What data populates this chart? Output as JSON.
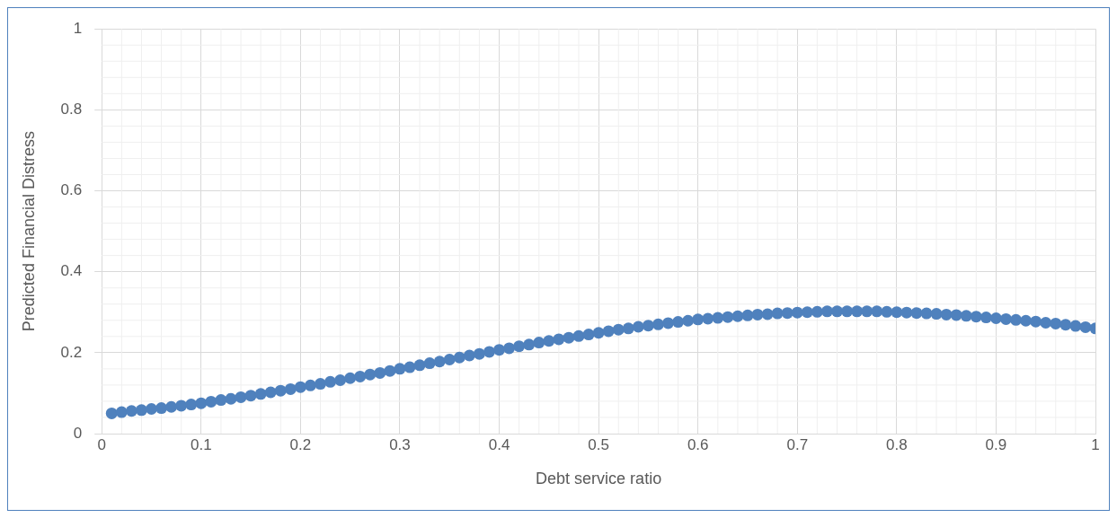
{
  "chart_data": {
    "type": "scatter",
    "xlabel": "Debt service ratio",
    "ylabel": "Predicted Financial Distress",
    "x": [
      0.01,
      0.02,
      0.03,
      0.04,
      0.05,
      0.06,
      0.07,
      0.08,
      0.09,
      0.1,
      0.11,
      0.12,
      0.13,
      0.14,
      0.15,
      0.16,
      0.17,
      0.18,
      0.19,
      0.2,
      0.21,
      0.22,
      0.23,
      0.24,
      0.25,
      0.26,
      0.27,
      0.28,
      0.29,
      0.3,
      0.31,
      0.32,
      0.33,
      0.34,
      0.35,
      0.36,
      0.37,
      0.38,
      0.39,
      0.4,
      0.41,
      0.42,
      0.43,
      0.44,
      0.45,
      0.46,
      0.47,
      0.48,
      0.49,
      0.5,
      0.51,
      0.52,
      0.53,
      0.54,
      0.55,
      0.56,
      0.57,
      0.58,
      0.59,
      0.6,
      0.61,
      0.62,
      0.63,
      0.64,
      0.65,
      0.66,
      0.67,
      0.68,
      0.69,
      0.7,
      0.71,
      0.72,
      0.73,
      0.74,
      0.75,
      0.76,
      0.77,
      0.78,
      0.79,
      0.8,
      0.81,
      0.82,
      0.83,
      0.84,
      0.85,
      0.86,
      0.87,
      0.88,
      0.89,
      0.9,
      0.91,
      0.92,
      0.93,
      0.94,
      0.95,
      0.96,
      0.97,
      0.98,
      0.99,
      1
    ],
    "series": [
      {
        "color": "#4f81bd",
        "values": [
          0.05,
          0.053,
          0.056,
          0.058,
          0.061,
          0.063,
          0.066,
          0.069,
          0.072,
          0.075,
          0.079,
          0.083,
          0.086,
          0.09,
          0.094,
          0.098,
          0.102,
          0.106,
          0.11,
          0.115,
          0.119,
          0.123,
          0.128,
          0.132,
          0.137,
          0.141,
          0.146,
          0.15,
          0.155,
          0.16,
          0.164,
          0.169,
          0.174,
          0.178,
          0.183,
          0.188,
          0.193,
          0.197,
          0.202,
          0.207,
          0.211,
          0.216,
          0.22,
          0.225,
          0.229,
          0.233,
          0.237,
          0.241,
          0.245,
          0.249,
          0.253,
          0.257,
          0.26,
          0.264,
          0.267,
          0.27,
          0.273,
          0.276,
          0.279,
          0.282,
          0.284,
          0.286,
          0.288,
          0.29,
          0.292,
          0.294,
          0.295,
          0.297,
          0.298,
          0.299,
          0.3,
          0.301,
          0.302,
          0.302,
          0.302,
          0.302,
          0.302,
          0.302,
          0.301,
          0.3,
          0.299,
          0.298,
          0.297,
          0.296,
          0.294,
          0.293,
          0.291,
          0.289,
          0.287,
          0.285,
          0.283,
          0.281,
          0.279,
          0.277,
          0.274,
          0.272,
          0.269,
          0.266,
          0.263,
          0.26
        ]
      }
    ],
    "xlim": [
      0,
      1
    ],
    "xticks": [
      0,
      0.1,
      0.2,
      0.3,
      0.4,
      0.5,
      0.6,
      0.7,
      0.8,
      0.9,
      1
    ],
    "ylim": [
      0,
      1
    ],
    "yticks": [
      0,
      0.2,
      0.4,
      0.6,
      0.8,
      1
    ],
    "grid": true,
    "marker": "circle",
    "legend": false
  }
}
